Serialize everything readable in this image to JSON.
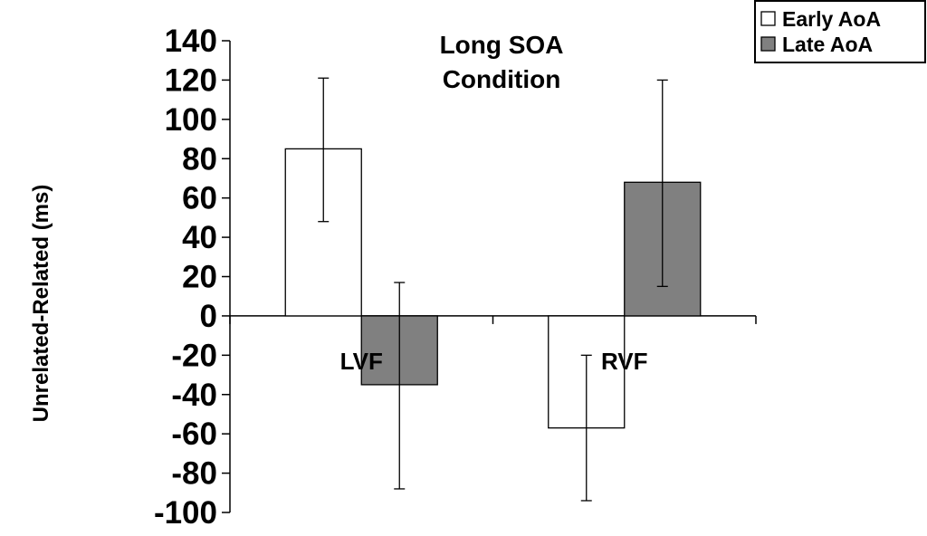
{
  "chart_data": {
    "type": "bar",
    "title_lines": [
      "Long SOA",
      "Condition"
    ],
    "ylabel": "Unrelated-Related (ms)",
    "xlabel": "",
    "categories": [
      "LVF",
      "RVF"
    ],
    "ylim": [
      -100,
      140
    ],
    "yticks": [
      140,
      120,
      100,
      80,
      60,
      40,
      20,
      0,
      -20,
      -40,
      -60,
      -80,
      -100
    ],
    "grid": false,
    "legend_position": "top-right",
    "series": [
      {
        "name": "Early AoA",
        "color": "#ffffff",
        "values": [
          85,
          -57
        ],
        "error_low": [
          48,
          -94
        ],
        "error_high": [
          121,
          -20
        ]
      },
      {
        "name": "Late AoA",
        "color": "#808080",
        "values": [
          -35,
          68
        ],
        "error_low": [
          -88,
          15
        ],
        "error_high": [
          17,
          120
        ]
      }
    ]
  }
}
